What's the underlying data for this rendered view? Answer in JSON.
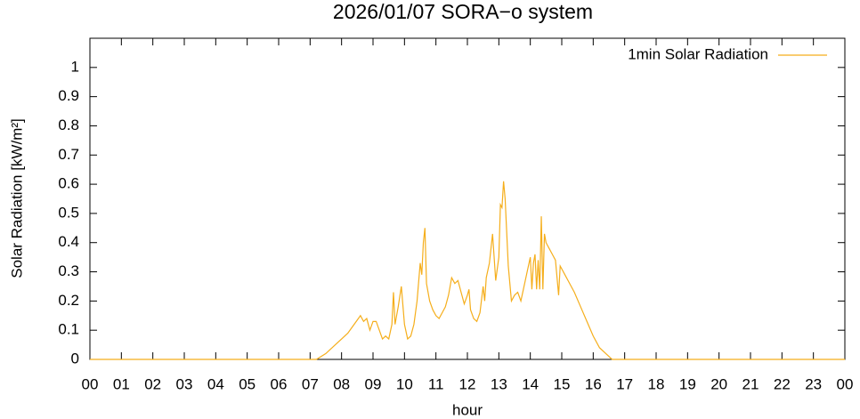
{
  "chart_data": {
    "type": "line",
    "title": "2026/01/07 SORA−o system",
    "xlabel": "hour",
    "ylabel": "Solar Radiation [kW/m²]",
    "legend": "top-right",
    "xlim": [
      0,
      24
    ],
    "ylim": [
      0,
      1.1
    ],
    "xticks": [
      {
        "value": 0,
        "label": "00"
      },
      {
        "value": 1,
        "label": "01"
      },
      {
        "value": 2,
        "label": "02"
      },
      {
        "value": 3,
        "label": "03"
      },
      {
        "value": 4,
        "label": "04"
      },
      {
        "value": 5,
        "label": "05"
      },
      {
        "value": 6,
        "label": "06"
      },
      {
        "value": 7,
        "label": "07"
      },
      {
        "value": 8,
        "label": "08"
      },
      {
        "value": 9,
        "label": "09"
      },
      {
        "value": 10,
        "label": "10"
      },
      {
        "value": 11,
        "label": "11"
      },
      {
        "value": 12,
        "label": "12"
      },
      {
        "value": 13,
        "label": "13"
      },
      {
        "value": 14,
        "label": "14"
      },
      {
        "value": 15,
        "label": "15"
      },
      {
        "value": 16,
        "label": "16"
      },
      {
        "value": 17,
        "label": "17"
      },
      {
        "value": 18,
        "label": "18"
      },
      {
        "value": 19,
        "label": "19"
      },
      {
        "value": 20,
        "label": "20"
      },
      {
        "value": 21,
        "label": "21"
      },
      {
        "value": 22,
        "label": "22"
      },
      {
        "value": 23,
        "label": "23"
      },
      {
        "value": 24,
        "label": "00"
      }
    ],
    "yticks": [
      0,
      0.1,
      0.2,
      0.3,
      0.4,
      0.5,
      0.6,
      0.7,
      0.8,
      0.9,
      1
    ],
    "x": [
      0,
      7.2,
      7.5,
      7.8,
      8.0,
      8.2,
      8.4,
      8.6,
      8.7,
      8.8,
      8.9,
      9.0,
      9.1,
      9.2,
      9.3,
      9.4,
      9.5,
      9.6,
      9.65,
      9.7,
      9.8,
      9.9,
      10.0,
      10.1,
      10.2,
      10.3,
      10.4,
      10.5,
      10.55,
      10.6,
      10.65,
      10.7,
      10.8,
      10.9,
      11.0,
      11.1,
      11.2,
      11.3,
      11.4,
      11.5,
      11.6,
      11.7,
      11.8,
      11.9,
      12.0,
      12.05,
      12.1,
      12.2,
      12.3,
      12.4,
      12.5,
      12.55,
      12.6,
      12.7,
      12.8,
      12.9,
      13.0,
      13.05,
      13.1,
      13.15,
      13.2,
      13.3,
      13.4,
      13.5,
      13.6,
      13.7,
      13.8,
      13.9,
      14.0,
      14.05,
      14.1,
      14.15,
      14.2,
      14.25,
      14.3,
      14.35,
      14.4,
      14.45,
      14.5,
      14.6,
      14.7,
      14.8,
      14.9,
      14.95,
      15.0,
      15.1,
      15.2,
      15.4,
      15.6,
      15.8,
      16.0,
      16.2,
      16.4,
      16.5,
      16.6,
      24
    ],
    "series": [
      {
        "name": "1min Solar Radiation",
        "color": "#f5ae1b",
        "values": [
          0,
          0,
          0.02,
          0.05,
          0.07,
          0.09,
          0.12,
          0.15,
          0.13,
          0.14,
          0.1,
          0.13,
          0.13,
          0.1,
          0.07,
          0.08,
          0.07,
          0.12,
          0.23,
          0.12,
          0.18,
          0.25,
          0.12,
          0.07,
          0.08,
          0.12,
          0.2,
          0.33,
          0.29,
          0.4,
          0.45,
          0.26,
          0.2,
          0.17,
          0.15,
          0.14,
          0.16,
          0.18,
          0.22,
          0.28,
          0.26,
          0.27,
          0.23,
          0.19,
          0.22,
          0.24,
          0.17,
          0.14,
          0.13,
          0.16,
          0.25,
          0.2,
          0.28,
          0.33,
          0.43,
          0.27,
          0.35,
          0.53,
          0.52,
          0.61,
          0.55,
          0.32,
          0.2,
          0.22,
          0.23,
          0.2,
          0.25,
          0.3,
          0.35,
          0.24,
          0.33,
          0.36,
          0.24,
          0.34,
          0.24,
          0.49,
          0.24,
          0.43,
          0.4,
          0.38,
          0.36,
          0.34,
          0.22,
          0.32,
          0.31,
          0.29,
          0.27,
          0.23,
          0.18,
          0.13,
          0.08,
          0.04,
          0.02,
          0.01,
          0,
          0
        ]
      }
    ]
  }
}
